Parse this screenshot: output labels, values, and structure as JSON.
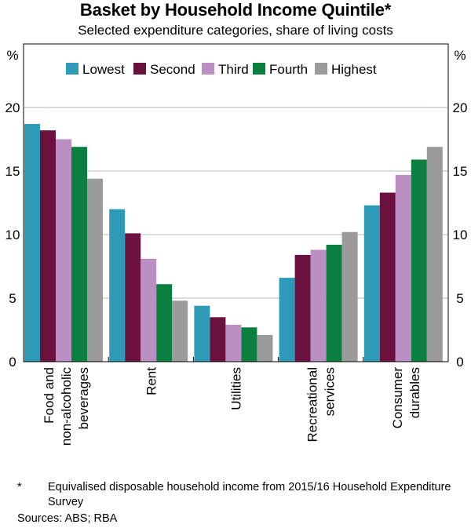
{
  "title": "Basket by Household Income Quintile*",
  "subtitle": "Selected expenditure categories, share of living costs",
  "footnote": {
    "marker": "*",
    "text": "Equivalised disposable household income from 2015/16 Household Expenditure Survey"
  },
  "sources": "Sources: ABS; RBA",
  "chart_data": {
    "type": "bar",
    "title": "Basket by Household Income Quintile*",
    "subtitle": "Selected expenditure categories, share of living costs",
    "ylabel_left": "%",
    "ylabel_right": "%",
    "ylim": [
      0,
      25
    ],
    "yticks": [
      0,
      5,
      10,
      15,
      20
    ],
    "grid": true,
    "legend_position": "top-left",
    "categories": [
      [
        "Food and",
        "non-alcoholic",
        "beverages"
      ],
      [
        "Rent"
      ],
      [
        "Utilities"
      ],
      [
        "Recreational",
        "services"
      ],
      [
        "Consumer",
        "durables"
      ]
    ],
    "series": [
      {
        "name": "Lowest",
        "color": "#2e9ab8",
        "values": [
          18.7,
          12.0,
          4.4,
          6.6,
          12.3
        ]
      },
      {
        "name": "Second",
        "color": "#6b1140",
        "values": [
          18.2,
          10.1,
          3.5,
          8.4,
          13.3
        ]
      },
      {
        "name": "Third",
        "color": "#bb8fc3",
        "values": [
          17.5,
          8.1,
          2.9,
          8.8,
          14.7
        ]
      },
      {
        "name": "Fourth",
        "color": "#0b7f3f",
        "values": [
          16.9,
          6.1,
          2.7,
          9.2,
          15.9
        ]
      },
      {
        "name": "Highest",
        "color": "#9a9b9a",
        "values": [
          14.4,
          4.8,
          2.1,
          10.2,
          16.9
        ]
      }
    ]
  }
}
